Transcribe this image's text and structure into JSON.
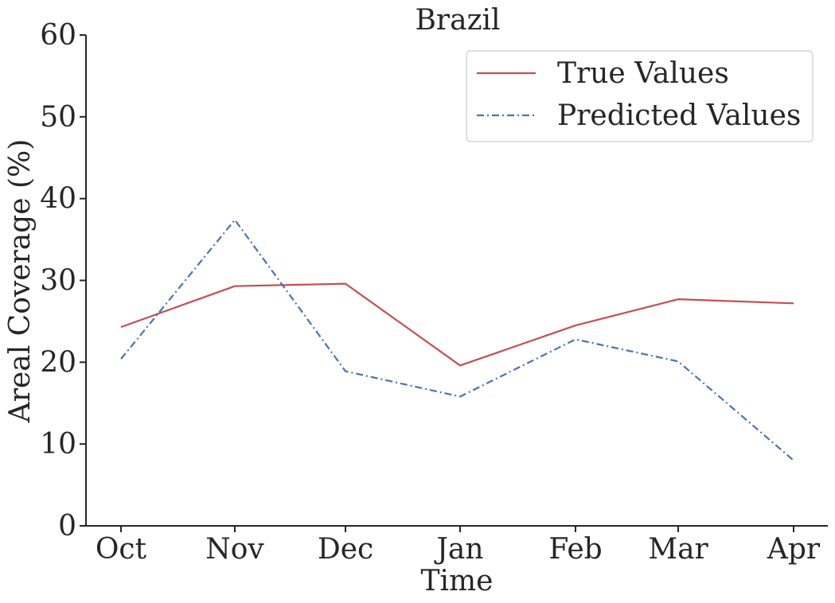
{
  "chart_data": {
    "type": "line",
    "title": "Brazil",
    "xlabel": "Time",
    "ylabel": "Areal Coverage (%)",
    "categories": [
      "Oct",
      "Nov",
      "Dec",
      "Jan",
      "Feb",
      "Mar",
      "Apr"
    ],
    "ylim": [
      0,
      60
    ],
    "yticks": [
      0,
      10,
      20,
      30,
      40,
      50,
      60
    ],
    "grid": false,
    "legend_position": "top-right",
    "series": [
      {
        "name": "True Values",
        "style": "solid",
        "color": "#c44e52",
        "values": [
          24.3,
          29.3,
          29.6,
          19.6,
          24.5,
          27.7,
          27.2
        ]
      },
      {
        "name": "Predicted Values",
        "style": "dashdot",
        "color": "#4c72b0",
        "values": [
          20.4,
          37.4,
          18.9,
          15.8,
          22.8,
          20.1,
          8.0
        ]
      }
    ]
  }
}
